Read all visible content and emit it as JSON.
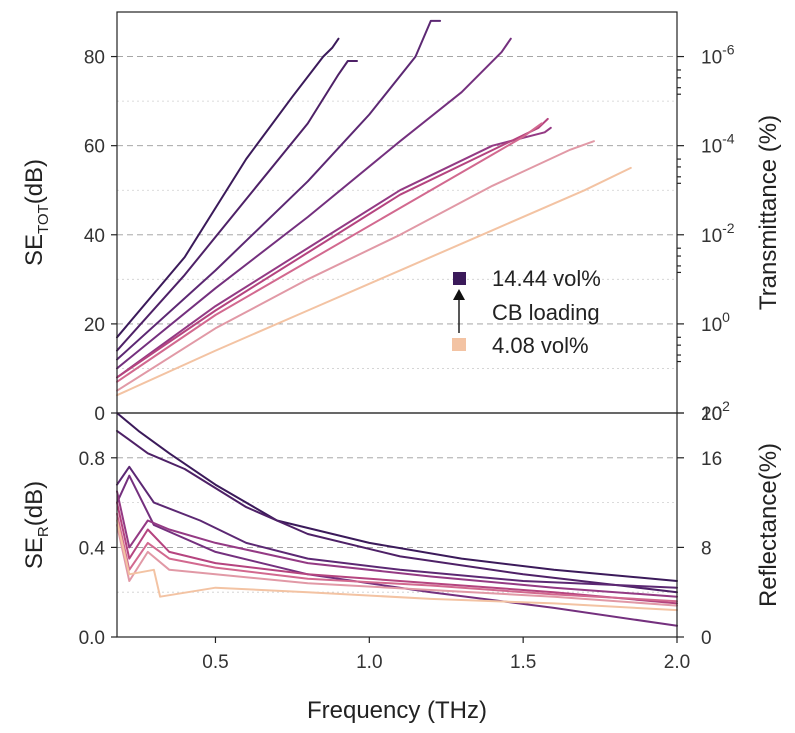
{
  "chart_data": [
    {
      "type": "line",
      "panel": "top",
      "xlabel": "Frequency (THz)",
      "ylabel_main": "SE",
      "ylabel_sub": "TOT",
      "ylabel_tail": "(dB)",
      "right_label": "Transmittance (%)",
      "xlim": [
        0.18,
        2.0
      ],
      "ylim": [
        0,
        90
      ],
      "yticks": [
        {
          "v": 0,
          "label": "0"
        },
        {
          "v": 20,
          "label": "20"
        },
        {
          "v": 40,
          "label": "40"
        },
        {
          "v": 60,
          "label": "60"
        },
        {
          "v": 80,
          "label": "80"
        }
      ],
      "right_ticks": [
        {
          "v": 0,
          "base": "10",
          "exp": "2"
        },
        {
          "v": 20,
          "base": "10",
          "exp": "0"
        },
        {
          "v": 40,
          "base": "10",
          "exp": "-2"
        },
        {
          "v": 60,
          "base": "10",
          "exp": "-4"
        },
        {
          "v": 80,
          "base": "10",
          "exp": "-6"
        }
      ],
      "grid": true,
      "legend": {
        "top_label": "14.44 vol%",
        "middle_label": "CB loading",
        "bottom_label": "4.08 vol%",
        "top_color": "#3b1a5a",
        "bottom_color": "#f3c3a3",
        "placement": "center-right"
      },
      "series": [
        {
          "color": "#3b1a5a",
          "x": [
            0.18,
            0.4,
            0.6,
            0.75,
            0.85,
            0.88,
            0.9
          ],
          "y": [
            17,
            35,
            57,
            71,
            80,
            82,
            84
          ]
        },
        {
          "color": "#4e2167",
          "x": [
            0.18,
            0.4,
            0.6,
            0.8,
            0.9,
            0.93,
            0.96
          ],
          "y": [
            14,
            31,
            48,
            65,
            76,
            79,
            79
          ]
        },
        {
          "color": "#5c2873",
          "x": [
            0.18,
            0.5,
            0.8,
            1.0,
            1.15,
            1.2,
            1.23
          ],
          "y": [
            12,
            32,
            52,
            67,
            80,
            88,
            88
          ]
        },
        {
          "color": "#74307e",
          "x": [
            0.18,
            0.5,
            0.8,
            1.1,
            1.3,
            1.43,
            1.46
          ],
          "y": [
            10,
            28,
            44,
            61,
            72,
            81,
            84
          ]
        },
        {
          "color": "#943a84",
          "x": [
            0.18,
            0.5,
            0.8,
            1.1,
            1.4,
            1.57,
            1.59
          ],
          "y": [
            8,
            24,
            37,
            50,
            60,
            63,
            64
          ]
        },
        {
          "color": "#b5447f",
          "x": [
            0.18,
            0.5,
            0.8,
            1.1,
            1.4,
            1.55,
            1.58
          ],
          "y": [
            8,
            23,
            36,
            49,
            59,
            64,
            66
          ]
        },
        {
          "color": "#d2698f",
          "x": [
            0.18,
            0.5,
            0.8,
            1.1,
            1.4,
            1.5,
            1.56
          ],
          "y": [
            7,
            22,
            34,
            46,
            58,
            62,
            65
          ]
        },
        {
          "color": "#e199a6",
          "x": [
            0.18,
            0.5,
            0.8,
            1.1,
            1.4,
            1.65,
            1.73
          ],
          "y": [
            5,
            19,
            30,
            40,
            51,
            59,
            61
          ]
        },
        {
          "color": "#f3c3a3",
          "x": [
            0.18,
            0.5,
            0.8,
            1.1,
            1.4,
            1.7,
            1.85
          ],
          "y": [
            4,
            14,
            23,
            32,
            41,
            50,
            55
          ]
        }
      ]
    },
    {
      "type": "line",
      "panel": "bottom",
      "xlabel": "Frequency (THz)",
      "ylabel_main": "SE",
      "ylabel_sub": "R",
      "ylabel_tail": "(dB)",
      "right_label": "Reflectance(%)",
      "xlim": [
        0.18,
        2.0
      ],
      "ylim": [
        0,
        1.0
      ],
      "xticks": [
        {
          "v": 0.5,
          "label": "0.5"
        },
        {
          "v": 1.0,
          "label": "1.0"
        },
        {
          "v": 1.5,
          "label": "1.5"
        },
        {
          "v": 2.0,
          "label": "2.0"
        }
      ],
      "yticks": [
        {
          "v": 0.0,
          "label": "0.0"
        },
        {
          "v": 0.4,
          "label": "0.4"
        },
        {
          "v": 0.8,
          "label": "0.8"
        }
      ],
      "right_ticks": [
        {
          "v": 0.0,
          "label": "0"
        },
        {
          "v": 0.4,
          "label": "8"
        },
        {
          "v": 0.8,
          "label": "16"
        },
        {
          "v": 1.0,
          "label": "20"
        }
      ],
      "grid": true,
      "series": [
        {
          "color": "#3b1a5a",
          "x": [
            0.18,
            0.25,
            0.35,
            0.5,
            0.7,
            1.0,
            1.3,
            1.6,
            2.0
          ],
          "y": [
            1.0,
            0.92,
            0.82,
            0.68,
            0.52,
            0.42,
            0.35,
            0.3,
            0.25
          ]
        },
        {
          "color": "#4e2167",
          "x": [
            0.18,
            0.28,
            0.4,
            0.6,
            0.8,
            1.1,
            1.5,
            2.0
          ],
          "y": [
            0.92,
            0.82,
            0.75,
            0.58,
            0.46,
            0.36,
            0.28,
            0.2
          ]
        },
        {
          "color": "#5c2873",
          "x": [
            0.18,
            0.22,
            0.3,
            0.45,
            0.6,
            0.8,
            1.1,
            1.5,
            2.0
          ],
          "y": [
            0.68,
            0.76,
            0.6,
            0.52,
            0.42,
            0.35,
            0.3,
            0.25,
            0.22
          ]
        },
        {
          "color": "#74307e",
          "x": [
            0.18,
            0.22,
            0.3,
            0.5,
            0.8,
            1.2,
            1.6,
            2.0
          ],
          "y": [
            0.6,
            0.72,
            0.5,
            0.38,
            0.28,
            0.2,
            0.13,
            0.05
          ]
        },
        {
          "color": "#943a84",
          "x": [
            0.18,
            0.22,
            0.28,
            0.35,
            0.5,
            0.8,
            1.2,
            1.6,
            2.0
          ],
          "y": [
            0.65,
            0.4,
            0.52,
            0.48,
            0.42,
            0.33,
            0.27,
            0.22,
            0.18
          ]
        },
        {
          "color": "#b5447f",
          "x": [
            0.18,
            0.22,
            0.28,
            0.35,
            0.5,
            0.8,
            1.2,
            1.6,
            2.0
          ],
          "y": [
            0.6,
            0.35,
            0.48,
            0.38,
            0.33,
            0.28,
            0.24,
            0.2,
            0.15
          ]
        },
        {
          "color": "#d2698f",
          "x": [
            0.18,
            0.22,
            0.28,
            0.35,
            0.5,
            0.8,
            1.2,
            1.6,
            2.0
          ],
          "y": [
            0.55,
            0.3,
            0.42,
            0.35,
            0.31,
            0.26,
            0.23,
            0.19,
            0.16
          ]
        },
        {
          "color": "#e199a6",
          "x": [
            0.18,
            0.22,
            0.28,
            0.35,
            0.5,
            0.8,
            1.2,
            1.6,
            2.0
          ],
          "y": [
            0.5,
            0.25,
            0.38,
            0.3,
            0.28,
            0.24,
            0.21,
            0.18,
            0.14
          ]
        },
        {
          "color": "#f3c3a3",
          "x": [
            0.18,
            0.22,
            0.3,
            0.32,
            0.5,
            0.8,
            1.2,
            1.6,
            2.0
          ],
          "y": [
            0.52,
            0.28,
            0.3,
            0.18,
            0.22,
            0.2,
            0.17,
            0.15,
            0.12
          ]
        }
      ]
    }
  ]
}
